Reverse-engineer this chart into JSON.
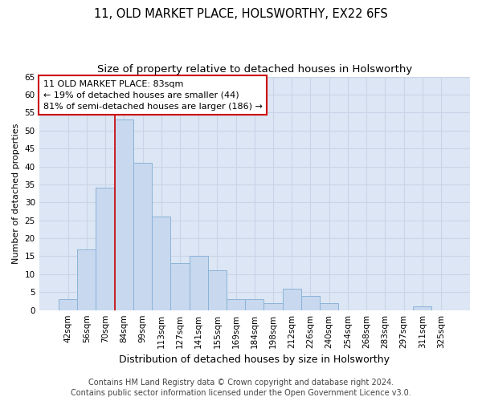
{
  "title": "11, OLD MARKET PLACE, HOLSWORTHY, EX22 6FS",
  "subtitle": "Size of property relative to detached houses in Holsworthy",
  "xlabel": "Distribution of detached houses by size in Holsworthy",
  "ylabel": "Number of detached properties",
  "categories": [
    "42sqm",
    "56sqm",
    "70sqm",
    "84sqm",
    "99sqm",
    "113sqm",
    "127sqm",
    "141sqm",
    "155sqm",
    "169sqm",
    "184sqm",
    "198sqm",
    "212sqm",
    "226sqm",
    "240sqm",
    "254sqm",
    "268sqm",
    "283sqm",
    "297sqm",
    "311sqm",
    "325sqm"
  ],
  "values": [
    3,
    17,
    34,
    53,
    41,
    26,
    13,
    15,
    11,
    3,
    3,
    2,
    6,
    4,
    2,
    0,
    0,
    0,
    0,
    1,
    0
  ],
  "bar_color": "#c8d8ee",
  "bar_edge_color": "#8ab4d8",
  "vline_x_index": 3,
  "vline_color": "#cc0000",
  "annotation_title": "11 OLD MARKET PLACE: 83sqm",
  "annotation_line1": "← 19% of detached houses are smaller (44)",
  "annotation_line2": "81% of semi-detached houses are larger (186) →",
  "annotation_box_color": "white",
  "annotation_box_edge": "#cc0000",
  "ylim": [
    0,
    65
  ],
  "yticks": [
    0,
    5,
    10,
    15,
    20,
    25,
    30,
    35,
    40,
    45,
    50,
    55,
    60,
    65
  ],
  "grid_color": "#c8d4e8",
  "bg_color": "#dde6f4",
  "footer_line1": "Contains HM Land Registry data © Crown copyright and database right 2024.",
  "footer_line2": "Contains public sector information licensed under the Open Government Licence v3.0.",
  "title_fontsize": 10.5,
  "subtitle_fontsize": 9.5,
  "xlabel_fontsize": 9,
  "ylabel_fontsize": 8,
  "tick_fontsize": 7.5,
  "annotation_fontsize": 8,
  "footer_fontsize": 7
}
